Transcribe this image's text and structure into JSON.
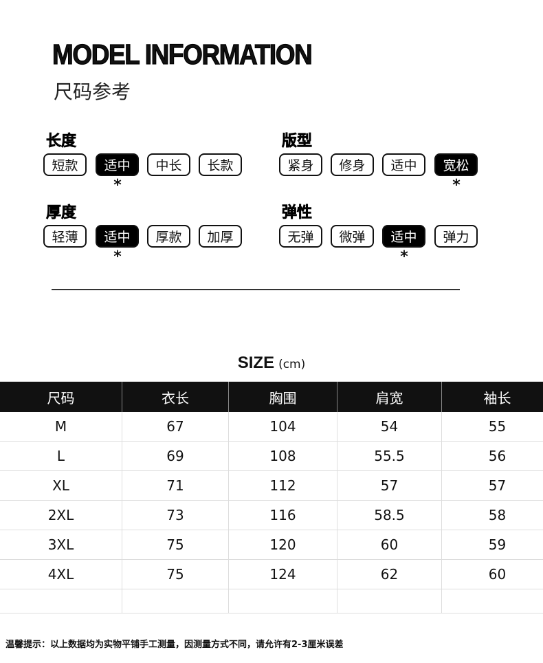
{
  "title": "MODEL INFORMATION",
  "subtitle": "尺码参考",
  "groups": [
    {
      "label": "长度",
      "options": [
        "短款",
        "适中",
        "中长",
        "长款"
      ],
      "selected": 1
    },
    {
      "label": "版型",
      "options": [
        "紧身",
        "修身",
        "适中",
        "宽松"
      ],
      "selected": 3
    },
    {
      "label": "厚度",
      "options": [
        "轻薄",
        "适中",
        "厚款",
        "加厚"
      ],
      "selected": 1
    },
    {
      "label": "弹性",
      "options": [
        "无弹",
        "微弹",
        "适中",
        "弹力"
      ],
      "selected": 2
    }
  ],
  "star": "*",
  "size_title": "SIZE",
  "size_unit": "(cm)",
  "table": {
    "headers": [
      "尺码",
      "衣长",
      "胸围",
      "肩宽",
      "袖长"
    ],
    "rows": [
      [
        "M",
        "67",
        "104",
        "54",
        "55"
      ],
      [
        "L",
        "69",
        "108",
        "55.5",
        "56"
      ],
      [
        "XL",
        "71",
        "112",
        "57",
        "57"
      ],
      [
        "2XL",
        "73",
        "116",
        "58.5",
        "58"
      ],
      [
        "3XL",
        "75",
        "120",
        "60",
        "59"
      ],
      [
        "4XL",
        "75",
        "124",
        "62",
        "60"
      ]
    ]
  },
  "note": "温馨提示：以上数据均为实物平铺手工测量，因测量方式不同，请允许有2-3厘米误差"
}
